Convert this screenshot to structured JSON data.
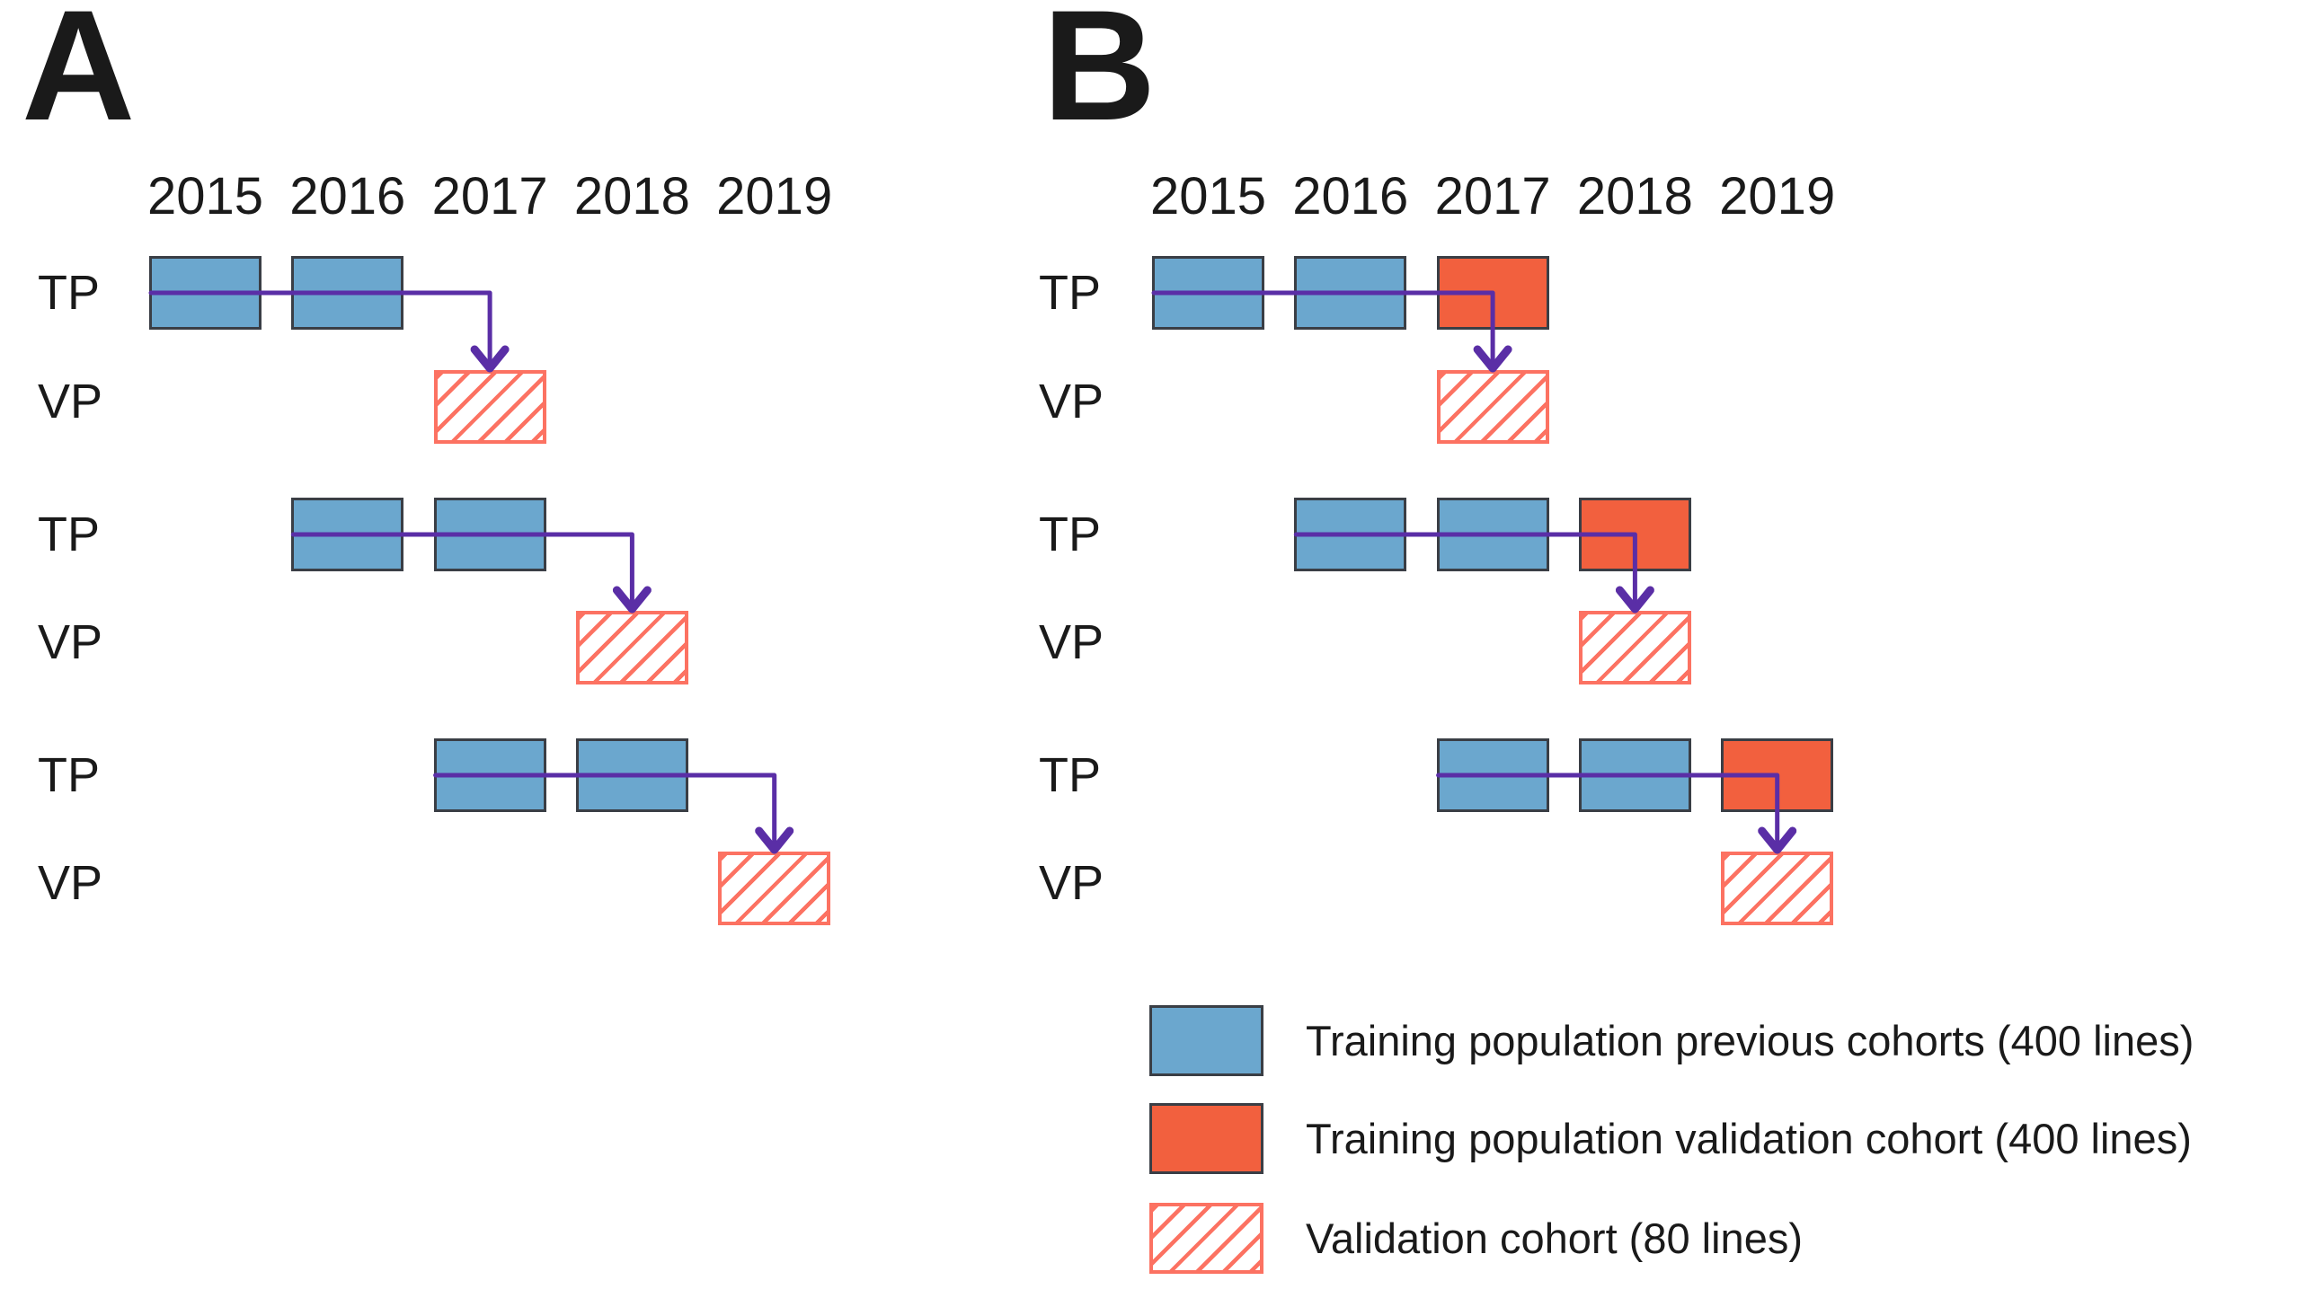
{
  "colors": {
    "blue": "#6BA7CE",
    "orange": "#F2603E",
    "salmon": "#FC7262",
    "purple": "#5A2EA6",
    "box_border": "#3A3E45",
    "text": "#1A1A1A",
    "background": "#FFFFFF"
  },
  "row_labels": {
    "tp": "TP",
    "vp": "VP"
  },
  "panels": [
    {
      "id": "A",
      "label": "A",
      "years": [
        "2015",
        "2016",
        "2017",
        "2018",
        "2019"
      ],
      "groups": [
        {
          "tp_cells": [
            {
              "year_index": 0,
              "kind": "previous"
            },
            {
              "year_index": 1,
              "kind": "previous"
            }
          ],
          "vp_year_index": 2
        },
        {
          "tp_cells": [
            {
              "year_index": 1,
              "kind": "previous"
            },
            {
              "year_index": 2,
              "kind": "previous"
            }
          ],
          "vp_year_index": 3
        },
        {
          "tp_cells": [
            {
              "year_index": 2,
              "kind": "previous"
            },
            {
              "year_index": 3,
              "kind": "previous"
            }
          ],
          "vp_year_index": 4
        }
      ]
    },
    {
      "id": "B",
      "label": "B",
      "years": [
        "2015",
        "2016",
        "2017",
        "2018",
        "2019"
      ],
      "groups": [
        {
          "tp_cells": [
            {
              "year_index": 0,
              "kind": "previous"
            },
            {
              "year_index": 1,
              "kind": "previous"
            },
            {
              "year_index": 2,
              "kind": "validation_training"
            }
          ],
          "vp_year_index": 2
        },
        {
          "tp_cells": [
            {
              "year_index": 1,
              "kind": "previous"
            },
            {
              "year_index": 2,
              "kind": "previous"
            },
            {
              "year_index": 3,
              "kind": "validation_training"
            }
          ],
          "vp_year_index": 3
        },
        {
          "tp_cells": [
            {
              "year_index": 2,
              "kind": "previous"
            },
            {
              "year_index": 3,
              "kind": "previous"
            },
            {
              "year_index": 4,
              "kind": "validation_training"
            }
          ],
          "vp_year_index": 4
        }
      ]
    }
  ],
  "legend": {
    "items": [
      {
        "kind": "previous",
        "label": "Training population previous cohorts (400 lines)"
      },
      {
        "kind": "validation_training",
        "label": "Training population validation cohort (400 lines)"
      },
      {
        "kind": "validation",
        "label": "Validation cohort (80 lines)"
      }
    ]
  }
}
